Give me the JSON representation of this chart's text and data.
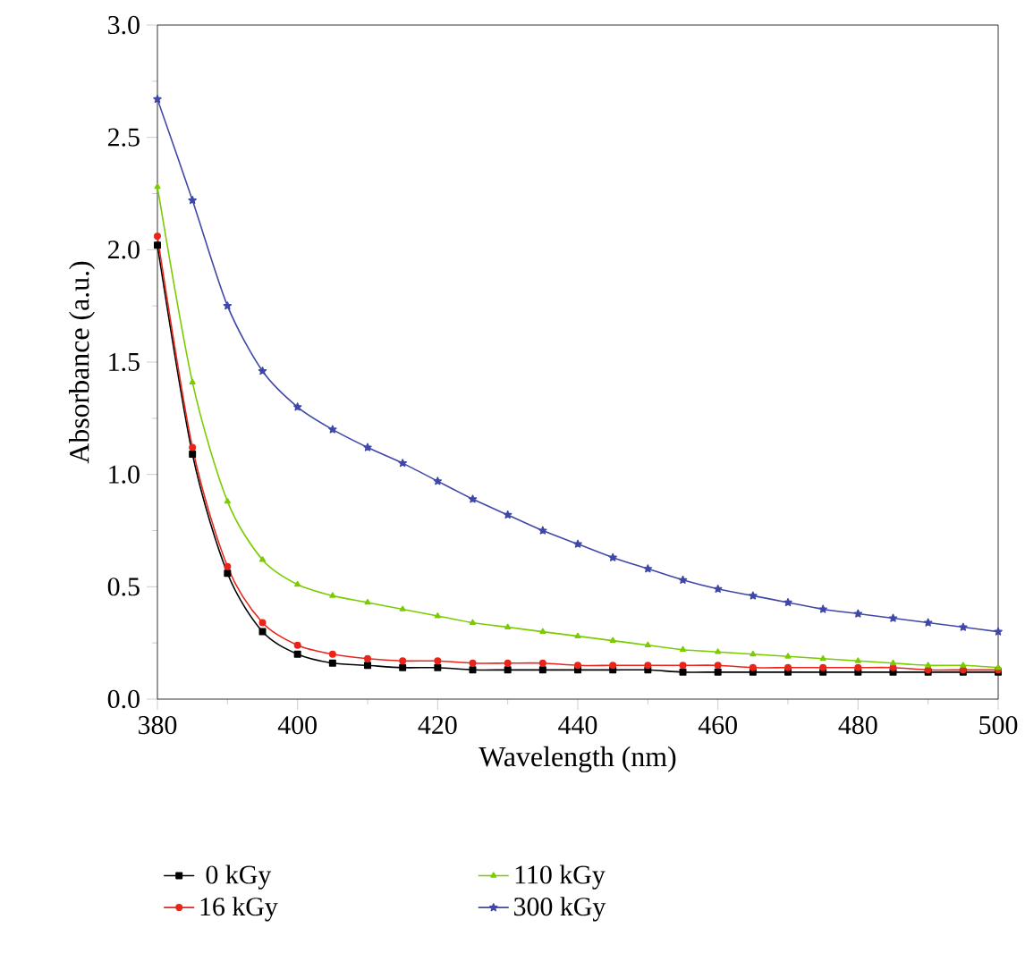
{
  "chart_data": {
    "type": "line",
    "xlabel": "Wavelength (nm)",
    "ylabel": "Absorbance (a.u.)",
    "x": [
      380,
      385,
      390,
      395,
      400,
      405,
      410,
      415,
      420,
      425,
      430,
      435,
      440,
      445,
      450,
      455,
      460,
      465,
      470,
      475,
      480,
      485,
      490,
      495,
      500
    ],
    "xlim": [
      380,
      500
    ],
    "ylim": [
      0,
      3.0
    ],
    "xticks": [
      380,
      400,
      420,
      440,
      460,
      480,
      500
    ],
    "yticks": [
      {
        "value": 0,
        "label": "0.0"
      },
      {
        "value": 0.5,
        "label": "0.5"
      },
      {
        "value": 1,
        "label": "1.0"
      },
      {
        "value": 1.5,
        "label": "1.5"
      },
      {
        "value": 2,
        "label": "2.0"
      },
      {
        "value": 2.5,
        "label": "2.5"
      },
      {
        "value": 3,
        "label": "3.0"
      }
    ],
    "legend": "bottom",
    "grid": false,
    "line_style": "solid",
    "series": [
      {
        "name": "0 kGy",
        "color": "#000000",
        "marker": "square",
        "values": [
          2.02,
          1.09,
          0.56,
          0.3,
          0.2,
          0.16,
          0.15,
          0.14,
          0.14,
          0.13,
          0.13,
          0.13,
          0.13,
          0.13,
          0.13,
          0.12,
          0.12,
          0.12,
          0.12,
          0.12,
          0.12,
          0.12,
          0.12,
          0.12,
          0.12
        ]
      },
      {
        "name": "16 kGy",
        "color": "#e8251b",
        "marker": "circle",
        "values": [
          2.06,
          1.12,
          0.59,
          0.34,
          0.24,
          0.2,
          0.18,
          0.17,
          0.17,
          0.16,
          0.16,
          0.16,
          0.15,
          0.15,
          0.15,
          0.15,
          0.15,
          0.14,
          0.14,
          0.14,
          0.14,
          0.14,
          0.13,
          0.13,
          0.13
        ]
      },
      {
        "name": "110 kGy",
        "color": "#7acc00",
        "marker": "triangle",
        "values": [
          2.28,
          1.41,
          0.88,
          0.62,
          0.51,
          0.46,
          0.43,
          0.4,
          0.37,
          0.34,
          0.32,
          0.3,
          0.28,
          0.26,
          0.24,
          0.22,
          0.21,
          0.2,
          0.19,
          0.18,
          0.17,
          0.16,
          0.15,
          0.15,
          0.14
        ]
      },
      {
        "name": "300 kGy",
        "color": "#3f48a8",
        "marker": "star",
        "values": [
          2.67,
          2.22,
          1.75,
          1.46,
          1.3,
          1.2,
          1.12,
          1.05,
          0.97,
          0.89,
          0.82,
          0.75,
          0.69,
          0.63,
          0.58,
          0.53,
          0.49,
          0.46,
          0.43,
          0.4,
          0.38,
          0.36,
          0.34,
          0.32,
          0.3
        ]
      }
    ]
  }
}
